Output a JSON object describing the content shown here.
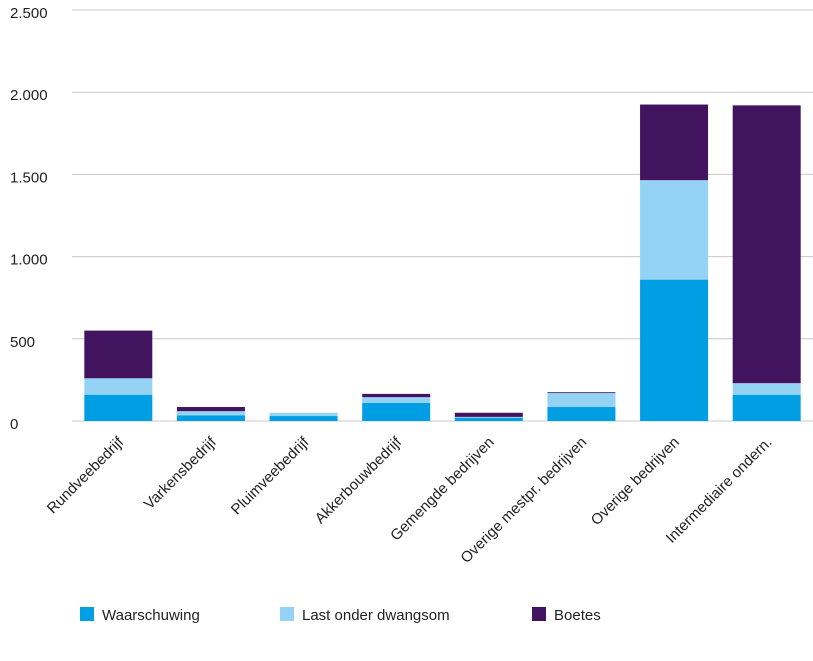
{
  "chart_data": {
    "type": "stacked-bar",
    "categories": [
      "Rundveebedrijf",
      "Varkensbedrijf",
      "Pluimveebedrijf",
      "Akkerbouwbedrijf",
      "Gemengde bedrijven",
      "Overige mestpr. bedrijven",
      "Overige bedrijven",
      "Intermediaire ondern."
    ],
    "series": [
      {
        "name": "Waarschuwing",
        "color": "#009fe3",
        "values": [
          160,
          35,
          30,
          110,
          20,
          85,
          860,
          160
        ]
      },
      {
        "name": "Last onder dwangsom",
        "color": "#94d3f3",
        "values": [
          100,
          25,
          20,
          35,
          5,
          85,
          605,
          70
        ]
      },
      {
        "name": "Boetes",
        "color": "#42145f",
        "values": [
          290,
          25,
          0,
          20,
          25,
          5,
          460,
          1690
        ]
      }
    ],
    "ylim": [
      0,
      2500
    ],
    "yticks": [
      0,
      500,
      {
        "value": 1000,
        "label": "1.000"
      },
      {
        "value": 1500,
        "label": "1.500"
      },
      {
        "value": 2000,
        "label": "2.000"
      },
      {
        "value": 2500,
        "label": "2.500"
      }
    ],
    "grid": true
  }
}
